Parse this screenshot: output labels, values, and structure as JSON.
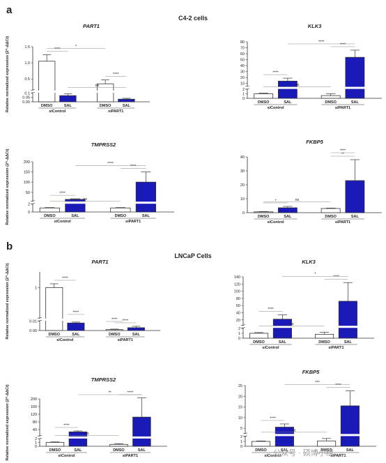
{
  "panels": {
    "a": {
      "letter": "a",
      "title": "C4-2 cells"
    },
    "b": {
      "letter": "b",
      "title": "LNCaP Cells"
    }
  },
  "ylabel": "Relative normalized expression (2^-ΔΔCt)",
  "watermark": "公众号 · 硕博小组",
  "colors": {
    "dmso": "#ffffff",
    "sal": "#1a1ab8",
    "stroke": "#333333",
    "sig": "#888888"
  },
  "chart_data": [
    {
      "id": "a-part1",
      "type": "bar",
      "title": "PART1",
      "ylim": [
        0,
        1.5
      ],
      "break": [
        0.1,
        0.15
      ],
      "yticks": [
        "0.00",
        "0.05",
        "0.1",
        "0.5",
        "1.0",
        "1.5"
      ],
      "categories": [
        "DMSO",
        "SAL",
        "DMSO",
        "SAL"
      ],
      "groups": [
        "siControl",
        "siPART1"
      ],
      "series": [
        {
          "values": [
            1.05,
            0.07,
            0.35,
            0.03
          ],
          "errors": [
            0.2,
            0.02,
            0.12,
            0.01
          ]
        }
      ],
      "annotations": [
        {
          "text": "****",
          "between": [
            0,
            1
          ]
        },
        {
          "text": "*",
          "between": [
            0,
            2
          ]
        },
        {
          "text": "ns",
          "between": [
            1,
            3
          ]
        },
        {
          "text": "****",
          "between": [
            2,
            3
          ]
        }
      ]
    },
    {
      "id": "a-klk3",
      "type": "bar",
      "title": "KLK3",
      "ylim": [
        0,
        80
      ],
      "break": [
        2,
        5
      ],
      "yticks": [
        "0",
        "1",
        "2",
        "10",
        "20",
        "30",
        "40",
        "50",
        "60",
        "70",
        "80"
      ],
      "categories": [
        "DMSO",
        "SAL",
        "DMSO",
        "SAL"
      ],
      "groups": [
        "siControl",
        "siPART1"
      ],
      "series": [
        {
          "values": [
            1.0,
            14,
            0.6,
            54
          ],
          "errors": [
            0.15,
            5,
            0.4,
            12
          ]
        }
      ],
      "annotations": [
        {
          "text": "****",
          "between": [
            0,
            1
          ]
        },
        {
          "text": "ns",
          "between": [
            0,
            2
          ]
        },
        {
          "text": "****",
          "between": [
            2,
            3
          ]
        },
        {
          "text": "****",
          "between": [
            1,
            3
          ]
        }
      ]
    },
    {
      "id": "a-tmprss2",
      "type": "bar",
      "title": "TMPRSS2",
      "ylim": [
        0,
        200
      ],
      "break": [
        2,
        5
      ],
      "yticks": [
        "0",
        "2",
        "50",
        "100",
        "150",
        "200"
      ],
      "categories": [
        "DMSO",
        "SAL",
        "DMSO",
        "SAL"
      ],
      "groups": [
        "siControl",
        "siPART1"
      ],
      "series": [
        {
          "values": [
            1.0,
            15,
            1.0,
            100
          ],
          "errors": [
            0.1,
            3,
            0.1,
            50
          ]
        }
      ],
      "annotations": [
        {
          "text": "****",
          "between": [
            0,
            1
          ]
        },
        {
          "text": "ns",
          "between": [
            0,
            2
          ]
        },
        {
          "text": "****",
          "between": [
            2,
            3
          ]
        },
        {
          "text": "****",
          "between": [
            1,
            3
          ]
        }
      ]
    },
    {
      "id": "a-fkbp5",
      "type": "bar",
      "title": "FKBP5",
      "ylim": [
        0,
        40
      ],
      "yticks": [
        "0",
        "10",
        "20",
        "30",
        "40"
      ],
      "categories": [
        "DMSO",
        "SAL",
        "DMSO",
        "SAL"
      ],
      "groups": [
        "siControl",
        "siPART1"
      ],
      "series": [
        {
          "values": [
            0.6,
            3.5,
            3.0,
            23
          ],
          "errors": [
            0.2,
            1.0,
            0.3,
            15
          ]
        }
      ],
      "annotations": [
        {
          "text": "*",
          "between": [
            0,
            1
          ]
        },
        {
          "text": "ns",
          "between": [
            0,
            2
          ]
        },
        {
          "text": "**",
          "between": [
            2,
            3
          ]
        },
        {
          "text": "****",
          "between": [
            2,
            3
          ],
          "raise": true
        }
      ]
    },
    {
      "id": "b-part1",
      "type": "bar",
      "title": "PART1",
      "ylim": [
        0,
        1.5
      ],
      "break": [
        0.01,
        0.015
      ],
      "yticks": [
        "0.00",
        "0.01",
        "1"
      ],
      "categories": [
        "DMSO",
        "SAL",
        "DMSO",
        "SAL"
      ],
      "groups": [
        "siControl",
        "siPART1"
      ],
      "series": [
        {
          "values": [
            1.0,
            0.008,
            0.001,
            0.003
          ],
          "errors": [
            0.12,
            0.001,
            0.0005,
            0.0015
          ]
        }
      ],
      "annotations": [
        {
          "text": "****",
          "between": [
            0,
            1
          ]
        },
        {
          "text": "****",
          "between": [
            1,
            1
          ],
          "raise": true
        },
        {
          "text": "****",
          "between": [
            2,
            2
          ],
          "raise": true
        },
        {
          "text": "****",
          "between": [
            2,
            3
          ]
        }
      ]
    },
    {
      "id": "b-klk3",
      "type": "bar",
      "title": "KLK3",
      "ylim": [
        0,
        140
      ],
      "break": [
        2,
        5
      ],
      "yticks": [
        "0",
        "1",
        "2",
        "20",
        "40",
        "60",
        "80",
        "100",
        "120",
        "140"
      ],
      "categories": [
        "DMSO",
        "SAL",
        "DMSO",
        "SAL"
      ],
      "groups": [
        "siControl",
        "siPART1"
      ],
      "series": [
        {
          "values": [
            1.0,
            22,
            0.8,
            72
          ],
          "errors": [
            0.15,
            12,
            0.4,
            52
          ]
        }
      ],
      "annotations": [
        {
          "text": "****",
          "between": [
            0,
            1
          ]
        },
        {
          "text": "ns",
          "between": [
            0,
            2
          ]
        },
        {
          "text": "****",
          "between": [
            2,
            3
          ]
        },
        {
          "text": "*",
          "between": [
            1,
            3
          ]
        }
      ]
    },
    {
      "id": "b-tmprss2",
      "type": "bar",
      "title": "TMPRSS2",
      "ylim": [
        0,
        200
      ],
      "break": [
        2,
        5
      ],
      "yticks": [
        "0",
        "1",
        "2",
        "40",
        "80",
        "120",
        "160",
        "200"
      ],
      "categories": [
        "DMSO",
        "SAL",
        "DMSO",
        "SAL"
      ],
      "groups": [
        "siControl",
        "siPART1"
      ],
      "series": [
        {
          "values": [
            1.0,
            28,
            0.5,
            105
          ],
          "errors": [
            0.15,
            5,
            0.2,
            100
          ]
        }
      ],
      "annotations": [
        {
          "text": "****",
          "between": [
            0,
            1
          ]
        },
        {
          "text": "ns",
          "between": [
            0,
            2
          ]
        },
        {
          "text": "****",
          "between": [
            2,
            3
          ]
        },
        {
          "text": "**",
          "between": [
            1,
            3
          ]
        }
      ]
    },
    {
      "id": "b-fkbp5",
      "type": "bar",
      "title": "FKBP5",
      "ylim": [
        0,
        25
      ],
      "break": [
        2,
        2.5
      ],
      "yticks": [
        "0",
        "1",
        "2",
        "5",
        "10",
        "15",
        "20",
        "25"
      ],
      "categories": [
        "DMSO",
        "SAL",
        "DMSO",
        "SAL"
      ],
      "groups": [
        "siControl",
        "siPART1"
      ],
      "series": [
        {
          "values": [
            1.0,
            5.5,
            1.1,
            15.5
          ],
          "errors": [
            0.1,
            1.5,
            0.5,
            7
          ]
        }
      ],
      "annotations": [
        {
          "text": "****",
          "between": [
            0,
            1
          ]
        },
        {
          "text": "ns",
          "between": [
            0,
            2
          ]
        },
        {
          "text": "****",
          "between": [
            2,
            3
          ]
        },
        {
          "text": "***",
          "between": [
            1,
            3
          ]
        }
      ]
    }
  ]
}
